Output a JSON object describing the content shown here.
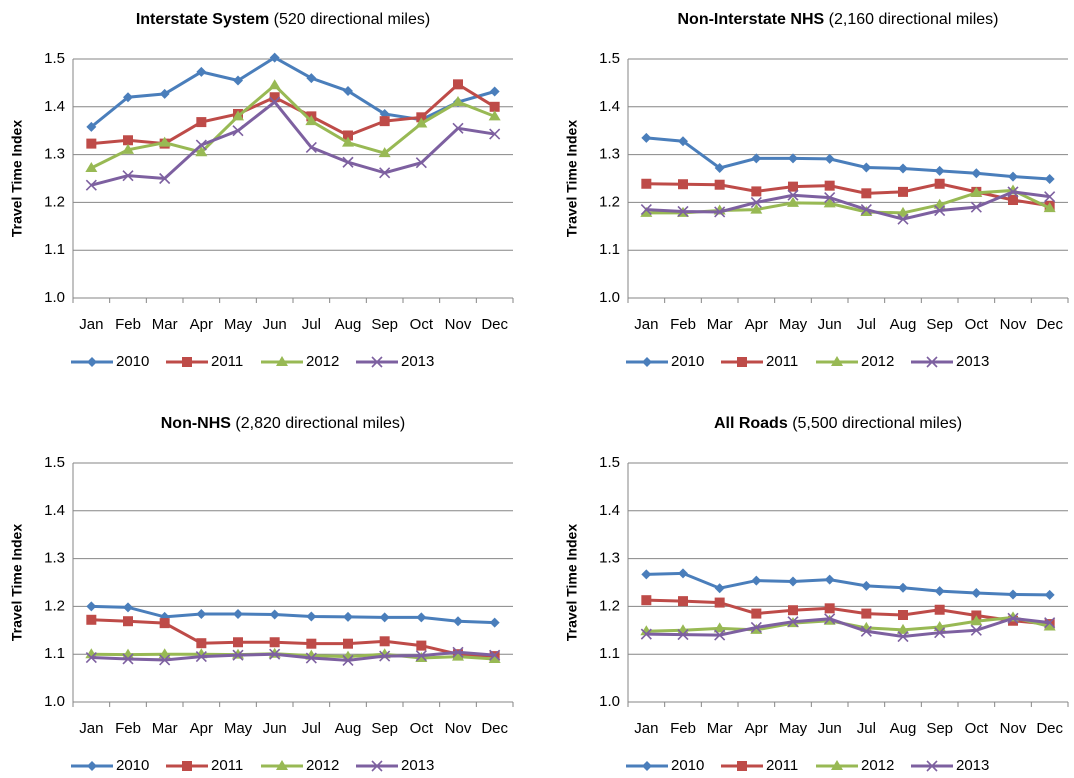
{
  "chart_data": [
    {
      "type": "line",
      "title": "Interstate System",
      "title_note": "(520 directional miles)",
      "y_label": "Travel Time Index",
      "categories": [
        "Jan",
        "Feb",
        "Mar",
        "Apr",
        "May",
        "Jun",
        "Jul",
        "Aug",
        "Sep",
        "Oct",
        "Nov",
        "Dec"
      ],
      "ylim": [
        1.0,
        1.5
      ],
      "yticks": [
        {
          "value": 1.0,
          "label": "1.0"
        },
        1.1,
        1.2,
        1.3,
        1.4,
        1.5
      ],
      "grid": true,
      "legend": "bottom",
      "series": [
        {
          "name": "2010",
          "color": "#4a7ebb",
          "marker": "diamond",
          "values": [
            1.358,
            1.42,
            1.427,
            1.473,
            1.455,
            1.503,
            1.46,
            1.433,
            1.385,
            1.373,
            1.41,
            1.432
          ]
        },
        {
          "name": "2011",
          "color": "#be4b48",
          "marker": "square",
          "values": [
            1.323,
            1.33,
            1.323,
            1.368,
            1.385,
            1.42,
            1.38,
            1.34,
            1.37,
            1.378,
            1.447,
            1.4
          ]
        },
        {
          "name": "2012",
          "color": "#98b954",
          "marker": "triangle",
          "values": [
            1.272,
            1.31,
            1.325,
            1.305,
            1.38,
            1.445,
            1.37,
            1.325,
            1.303,
            1.365,
            1.41,
            1.38
          ]
        },
        {
          "name": "2013",
          "color": "#7d60a0",
          "marker": "x",
          "values": [
            1.236,
            1.256,
            1.25,
            1.32,
            1.35,
            1.41,
            1.315,
            1.284,
            1.262,
            1.283,
            1.355,
            1.343
          ]
        }
      ]
    },
    {
      "type": "line",
      "title": "Non-Interstate NHS",
      "title_note": "(2,160 directional miles)",
      "y_label": "Travel Time Index",
      "categories": [
        "Jan",
        "Feb",
        "Mar",
        "Apr",
        "May",
        "Jun",
        "Jul",
        "Aug",
        "Sep",
        "Oct",
        "Nov",
        "Dec"
      ],
      "ylim": [
        1.0,
        1.5
      ],
      "yticks": [
        {
          "value": 1.0,
          "label": "1.0"
        },
        1.1,
        1.2,
        1.3,
        1.4,
        1.5
      ],
      "grid": true,
      "legend": "bottom",
      "series": [
        {
          "name": "2010",
          "color": "#4a7ebb",
          "marker": "diamond",
          "values": [
            1.335,
            1.328,
            1.272,
            1.292,
            1.292,
            1.291,
            1.273,
            1.271,
            1.266,
            1.261,
            1.254,
            1.249
          ]
        },
        {
          "name": "2011",
          "color": "#be4b48",
          "marker": "square",
          "values": [
            1.239,
            1.238,
            1.237,
            1.223,
            1.233,
            1.235,
            1.219,
            1.222,
            1.239,
            1.222,
            1.205,
            1.193
          ]
        },
        {
          "name": "2012",
          "color": "#98b954",
          "marker": "triangle",
          "values": [
            1.178,
            1.178,
            1.183,
            1.185,
            1.199,
            1.198,
            1.18,
            1.178,
            1.195,
            1.22,
            1.225,
            1.188
          ]
        },
        {
          "name": "2013",
          "color": "#7d60a0",
          "marker": "x",
          "values": [
            1.185,
            1.181,
            1.18,
            1.2,
            1.215,
            1.21,
            1.185,
            1.165,
            1.183,
            1.19,
            1.222,
            1.212
          ]
        }
      ]
    },
    {
      "type": "line",
      "title": "Non-NHS",
      "title_note": "(2,820 directional miles)",
      "y_label": "Travel Time Index",
      "categories": [
        "Jan",
        "Feb",
        "Mar",
        "Apr",
        "May",
        "Jun",
        "Jul",
        "Aug",
        "Sep",
        "Oct",
        "Nov",
        "Dec"
      ],
      "ylim": [
        1.0,
        1.5
      ],
      "yticks": [
        {
          "value": 1.0,
          "label": "1.0"
        },
        1.1,
        1.2,
        1.3,
        1.4,
        1.5
      ],
      "grid": true,
      "legend": "bottom",
      "series": [
        {
          "name": "2010",
          "color": "#4a7ebb",
          "marker": "diamond",
          "values": [
            1.2,
            1.198,
            1.178,
            1.184,
            1.184,
            1.183,
            1.179,
            1.178,
            1.177,
            1.177,
            1.169,
            1.166
          ]
        },
        {
          "name": "2011",
          "color": "#be4b48",
          "marker": "square",
          "values": [
            1.172,
            1.169,
            1.165,
            1.123,
            1.125,
            1.125,
            1.122,
            1.122,
            1.127,
            1.118,
            1.1,
            1.096
          ]
        },
        {
          "name": "2012",
          "color": "#98b954",
          "marker": "triangle",
          "values": [
            1.1,
            1.099,
            1.1,
            1.1,
            1.099,
            1.101,
            1.097,
            1.095,
            1.1,
            1.092,
            1.095,
            1.09
          ]
        },
        {
          "name": "2013",
          "color": "#7d60a0",
          "marker": "x",
          "values": [
            1.093,
            1.09,
            1.088,
            1.095,
            1.098,
            1.1,
            1.092,
            1.087,
            1.096,
            1.097,
            1.104,
            1.098
          ]
        }
      ]
    },
    {
      "type": "line",
      "title": "All Roads",
      "title_note": "(5,500 directional miles)",
      "y_label": "Travel Time Index",
      "categories": [
        "Jan",
        "Feb",
        "Mar",
        "Apr",
        "May",
        "Jun",
        "Jul",
        "Aug",
        "Sep",
        "Oct",
        "Nov",
        "Dec"
      ],
      "ylim": [
        1.0,
        1.5
      ],
      "yticks": [
        {
          "value": 1.0,
          "label": "1.0"
        },
        1.1,
        1.2,
        1.3,
        1.4,
        1.5
      ],
      "grid": true,
      "legend": "bottom",
      "series": [
        {
          "name": "2010",
          "color": "#4a7ebb",
          "marker": "diamond",
          "values": [
            1.267,
            1.269,
            1.238,
            1.254,
            1.252,
            1.256,
            1.243,
            1.239,
            1.232,
            1.228,
            1.225,
            1.224
          ]
        },
        {
          "name": "2011",
          "color": "#be4b48",
          "marker": "square",
          "values": [
            1.213,
            1.211,
            1.208,
            1.185,
            1.192,
            1.196,
            1.185,
            1.182,
            1.193,
            1.181,
            1.17,
            1.163
          ]
        },
        {
          "name": "2012",
          "color": "#98b954",
          "marker": "triangle",
          "values": [
            1.148,
            1.15,
            1.154,
            1.151,
            1.165,
            1.17,
            1.155,
            1.151,
            1.157,
            1.169,
            1.177,
            1.158
          ]
        },
        {
          "name": "2013",
          "color": "#7d60a0",
          "marker": "x",
          "values": [
            1.142,
            1.141,
            1.14,
            1.156,
            1.168,
            1.174,
            1.148,
            1.137,
            1.145,
            1.15,
            1.175,
            1.166
          ]
        }
      ]
    }
  ]
}
